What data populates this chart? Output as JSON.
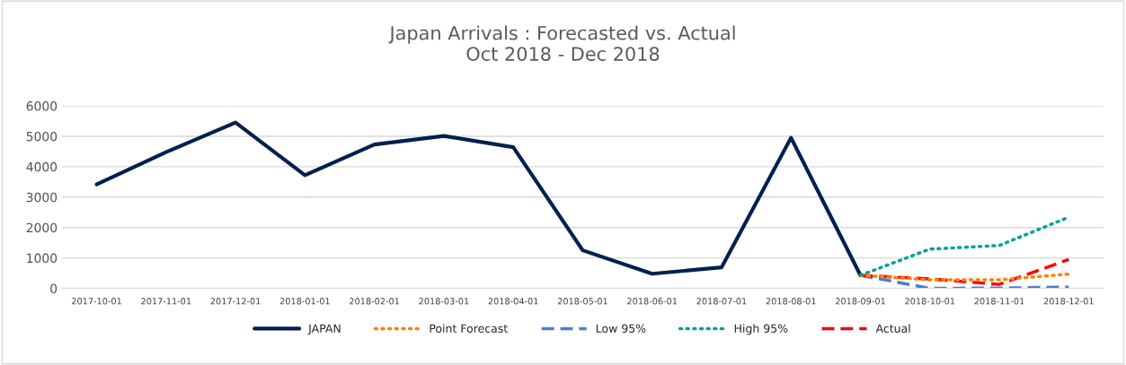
{
  "chart_data": {
    "type": "line",
    "title": "Japan Arrivals : Forecasted vs. Actual\nOct 2018 - Dec 2018",
    "categories": [
      "2017-10-01",
      "2017-11-01",
      "2017-12-01",
      "2018-01-01",
      "2018-02-01",
      "2018-03-01",
      "2018-04-01",
      "2018-05-01",
      "2018-06-01",
      "2018-07-01",
      "2018-08-01",
      "2018-09-01",
      "2018-10-01",
      "2018-11-01",
      "2018-12-01"
    ],
    "series": [
      {
        "name": "JAPAN",
        "color": "#002050",
        "line_style": "solid",
        "values": [
          3420,
          4480,
          5450,
          3720,
          4730,
          5010,
          4640,
          1250,
          480,
          690,
          4950,
          430,
          null,
          null,
          null
        ]
      },
      {
        "name": "Point Forecast",
        "color": "#ff8000",
        "line_style": "dotted",
        "values": [
          null,
          null,
          null,
          null,
          null,
          null,
          null,
          null,
          null,
          null,
          null,
          430,
          280,
          280,
          470
        ]
      },
      {
        "name": "Low 95%",
        "color": "#4a7fd0",
        "line_style": "dashed",
        "values": [
          null,
          null,
          null,
          null,
          null,
          null,
          null,
          null,
          null,
          null,
          null,
          430,
          0,
          10,
          40
        ]
      },
      {
        "name": "High 95%",
        "color": "#00a09a",
        "line_style": "dotted",
        "values": [
          null,
          null,
          null,
          null,
          null,
          null,
          null,
          null,
          null,
          null,
          null,
          430,
          1290,
          1410,
          2340
        ]
      },
      {
        "name": "Actual",
        "color": "#ff0000",
        "line_style": "dashed",
        "values": [
          null,
          null,
          null,
          null,
          null,
          null,
          null,
          null,
          null,
          null,
          null,
          430,
          310,
          130,
          950
        ]
      }
    ],
    "ylim": [
      0,
      6000
    ],
    "yticks": [
      0,
      1000,
      2000,
      3000,
      4000,
      5000,
      6000
    ],
    "grid": "y",
    "legend": "bottom"
  }
}
